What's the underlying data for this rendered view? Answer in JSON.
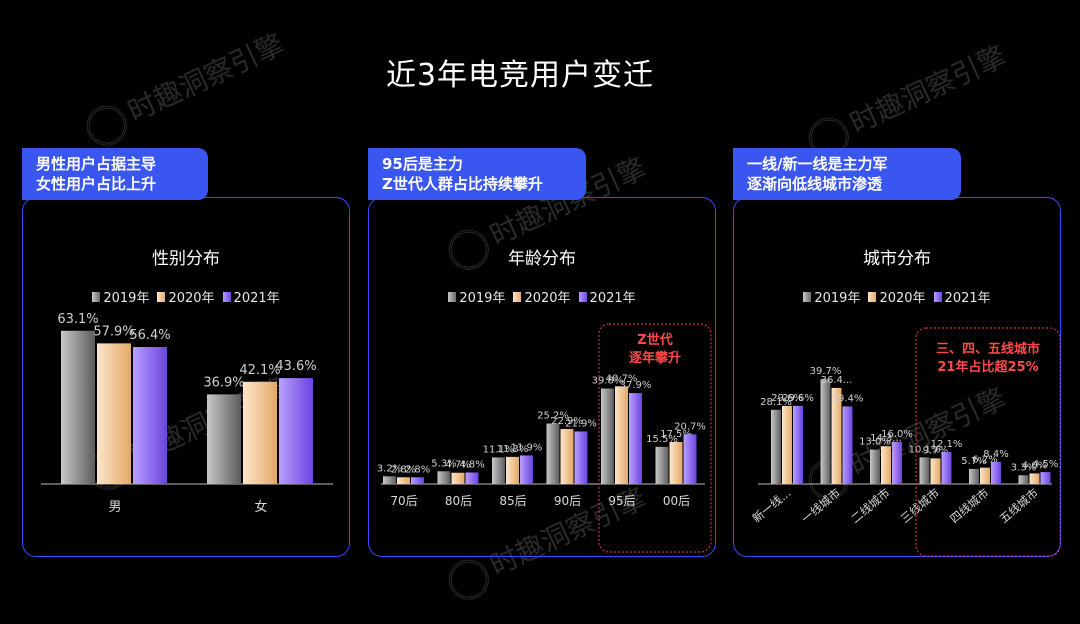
{
  "title": "近3年电竞用户变迁",
  "watermark": "时趣洞察引擎",
  "colors": {
    "y2019": "#8f8f8f",
    "y2020": "#f5c99a",
    "y2021": "#8e6cf0",
    "accent_blue": "#3957f0",
    "highlight_red": "#ff4a4a"
  },
  "panels": [
    {
      "callout": [
        "男性用户占据主导",
        "女性用户占比上升"
      ],
      "chart_title": "性别分布"
    },
    {
      "callout": [
        "95后是主力",
        "Z世代人群占比持续攀升"
      ],
      "chart_title": "年龄分布",
      "highlight": [
        "Z世代",
        "逐年攀升"
      ]
    },
    {
      "callout": [
        "一线/新一线是主力军",
        "逐渐向低线城市渗透"
      ],
      "chart_title": "城市分布",
      "highlight": [
        "三、四、五线城市",
        "21年占比超25%"
      ]
    }
  ],
  "chart_data": [
    {
      "type": "bar",
      "title": "性别分布",
      "categories": [
        "男",
        "女"
      ],
      "series": [
        {
          "name": "2019年",
          "values": [
            63.1,
            36.9
          ],
          "labels": [
            "63.1%",
            "36.9%"
          ]
        },
        {
          "name": "2020年",
          "values": [
            57.9,
            42.1
          ],
          "labels": [
            "57.9%",
            "42.1%"
          ]
        },
        {
          "name": "2021年",
          "values": [
            56.4,
            43.6
          ],
          "labels": [
            "56.4%",
            "43.6%"
          ]
        }
      ],
      "ylim": [
        0,
        70
      ],
      "legend": "top"
    },
    {
      "type": "bar",
      "title": "年龄分布",
      "categories": [
        "70后",
        "80后",
        "85后",
        "90后",
        "95后",
        "00后"
      ],
      "series": [
        {
          "name": "2019年",
          "values": [
            3.2,
            5.3,
            11.1,
            25.2,
            39.8,
            15.5
          ],
          "labels": [
            "3.2%",
            "5.3%",
            "11.1%",
            "25.2%",
            "39.8%",
            "15.5%"
          ]
        },
        {
          "name": "2020年",
          "values": [
            2.8,
            4.7,
            11.3,
            22.9,
            40.7,
            17.5
          ],
          "labels": [
            "2.8%",
            "4.7%",
            "11.3%",
            "22.9%",
            "40.7%",
            "17.5%"
          ]
        },
        {
          "name": "2021年",
          "values": [
            2.8,
            4.8,
            11.9,
            21.9,
            37.9,
            20.7
          ],
          "labels": [
            "2.8%",
            "4.8%",
            "11.9%",
            "21.9%",
            "37.9%",
            "20.7%"
          ]
        }
      ],
      "ylim": [
        0,
        50
      ],
      "legend": "top"
    },
    {
      "type": "bar",
      "title": "城市分布",
      "categories": [
        "新一线...",
        "一线城市",
        "二线城市",
        "三线城市",
        "四线城市",
        "五线城市"
      ],
      "series": [
        {
          "name": "2019年",
          "values": [
            28.1,
            39.7,
            13.0,
            10.1,
            5.7,
            3.3
          ],
          "labels": [
            "28.1%",
            "39.7%",
            "13.0%",
            "10.1%",
            "5.7%",
            "3.3%"
          ]
        },
        {
          "name": "2020年",
          "values": [
            29.6,
            36.4,
            14.3,
            9.7,
            6.2,
            4.0
          ],
          "labels": [
            "29.6%",
            "36.4...",
            "14.3...",
            "9.7%",
            "6.2%",
            "4.0%"
          ]
        },
        {
          "name": "2021年",
          "values": [
            29.6,
            29.4,
            16.0,
            12.1,
            8.4,
            4.5
          ],
          "labels": [
            "29.6%",
            "29.4%",
            "16.0%",
            "12.1%",
            "8.4%",
            "4.5%"
          ]
        }
      ],
      "ylim": [
        0,
        50
      ],
      "legend": "top"
    }
  ]
}
